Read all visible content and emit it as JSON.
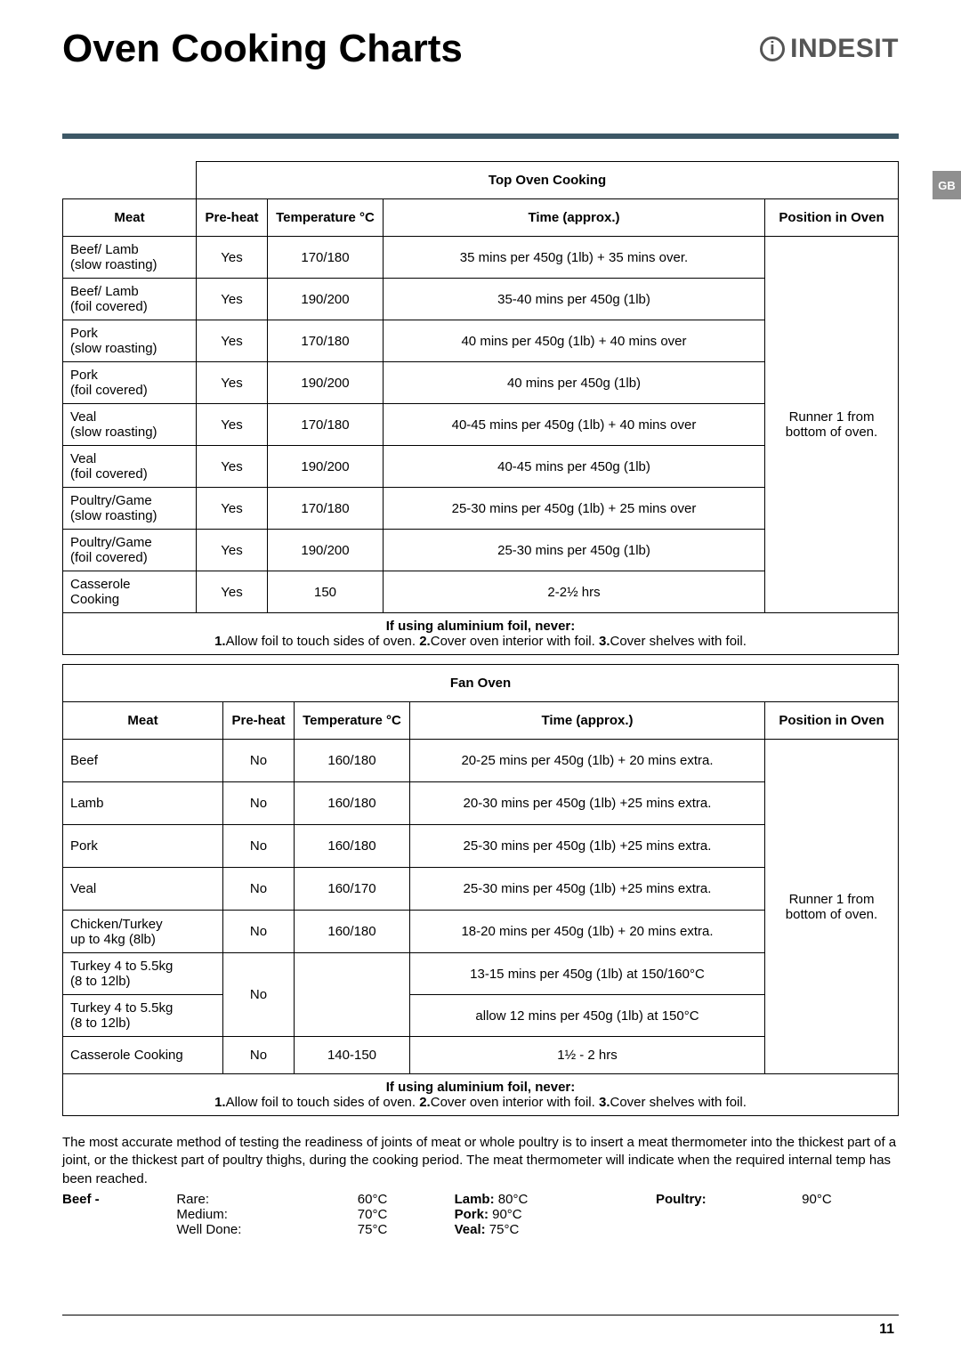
{
  "sideTab": "GB",
  "pageTitle": "Oven Cooking Charts",
  "logoText": "INDESIT",
  "topOven": {
    "sectionTitle": "Top Oven Cooking",
    "headers": {
      "meat": "Meat",
      "preheat": "Pre-heat",
      "temp": "Temperature °C",
      "time": "Time (approx.)",
      "pos": "Position in Oven"
    },
    "positionNote": "Runner 1 from bottom of oven.",
    "rows": [
      {
        "meat": "Beef/ Lamb\n(slow roasting)",
        "preheat": "Yes",
        "temp": "170/180",
        "time": "35 mins per 450g (1lb) + 35 mins over."
      },
      {
        "meat": "Beef/ Lamb\n(foil covered)",
        "preheat": "Yes",
        "temp": "190/200",
        "time": "35-40 mins per 450g (1lb)"
      },
      {
        "meat": "Pork\n(slow roasting)",
        "preheat": "Yes",
        "temp": "170/180",
        "time": "40 mins per 450g (1lb) + 40 mins over"
      },
      {
        "meat": "Pork\n(foil covered)",
        "preheat": "Yes",
        "temp": "190/200",
        "time": "40 mins per 450g (1lb)"
      },
      {
        "meat": "Veal\n(slow roasting)",
        "preheat": "Yes",
        "temp": "170/180",
        "time": "40-45 mins per 450g (1lb) + 40 mins over"
      },
      {
        "meat": "Veal\n(foil covered)",
        "preheat": "Yes",
        "temp": "190/200",
        "time": "40-45 mins per 450g (1lb)"
      },
      {
        "meat": "Poultry/Game\n(slow roasting)",
        "preheat": "Yes",
        "temp": "170/180",
        "time": "25-30 mins per 450g (1lb) + 25 mins over"
      },
      {
        "meat": "Poultry/Game\n(foil covered)",
        "preheat": "Yes",
        "temp": "190/200",
        "time": "25-30 mins per 450g (1lb)"
      },
      {
        "meat": "Casserole\nCooking",
        "preheat": "Yes",
        "temp": "150",
        "time": "2-2½ hrs"
      }
    ]
  },
  "fanOven": {
    "sectionTitle": "Fan Oven",
    "headers": {
      "meat": "Meat",
      "preheat": "Pre-heat",
      "temp": "Temperature °C",
      "time": "Time (approx.)",
      "pos": "Position in Oven"
    },
    "positionNote": "Runner 1 from bottom of oven.",
    "rows": [
      {
        "meat": "Beef",
        "preheat": "No",
        "temp": "160/180",
        "time": "20-25 mins per 450g (1lb) + 20 mins extra."
      },
      {
        "meat": "Lamb",
        "preheat": "No",
        "temp": "160/180",
        "time": "20-30 mins per 450g (1lb) +25 mins extra."
      },
      {
        "meat": "Pork",
        "preheat": "No",
        "temp": "160/180",
        "time": "25-30 mins per 450g (1lb) +25 mins extra."
      },
      {
        "meat": "Veal",
        "preheat": "No",
        "temp": "160/170",
        "time": "25-30 mins per 450g (1lb) +25 mins extra."
      },
      {
        "meat": "Chicken/Turkey\nup to 4kg (8lb)",
        "preheat": "No",
        "temp": "160/180",
        "time": "18-20 mins per 450g (1lb) + 20 mins extra."
      }
    ],
    "turkeyA": {
      "meat": "Turkey 4 to 5.5kg\n(8 to 12lb)",
      "preheat": "No",
      "time": "13-15 mins per 450g (1lb) at 150/160°C"
    },
    "turkeyB": {
      "meat": "Turkey 4 to 5.5kg\n(8 to 12lb)",
      "time": "allow 12 mins per 450g (1lb) at 150°C"
    },
    "casserole": {
      "meat": "Casserole Cooking",
      "preheat": "No",
      "temp": "140-150",
      "time": "1½ - 2 hrs"
    }
  },
  "foilNote": {
    "title": "If using aluminium foil, never:",
    "items": [
      "Allow foil to touch sides of oven.",
      "Cover oven interior with foil.",
      "Cover shelves with foil."
    ]
  },
  "bodyText": "The most accurate method of testing the readiness of joints of meat or whole poultry is to insert a meat thermometer into the thickest part of a joint, or the thickest part of poultry thighs, during the cooking period. The meat thermometer will indicate when the required internal temp has been reached.",
  "temps": {
    "beefLabel": "Beef -",
    "beef": {
      "Rare:": "60°C",
      "Medium:": "70°C",
      "Well Done:": "75°C"
    },
    "lamb": {
      "label": "Lamb:",
      "val": "80°C"
    },
    "pork": {
      "label": "Pork:",
      "val": "90°C"
    },
    "veal": {
      "label": "Veal:",
      "val": "75°C"
    },
    "poultry": {
      "label": "Poultry:",
      "val": "90°C"
    }
  },
  "pageNumber": "11"
}
